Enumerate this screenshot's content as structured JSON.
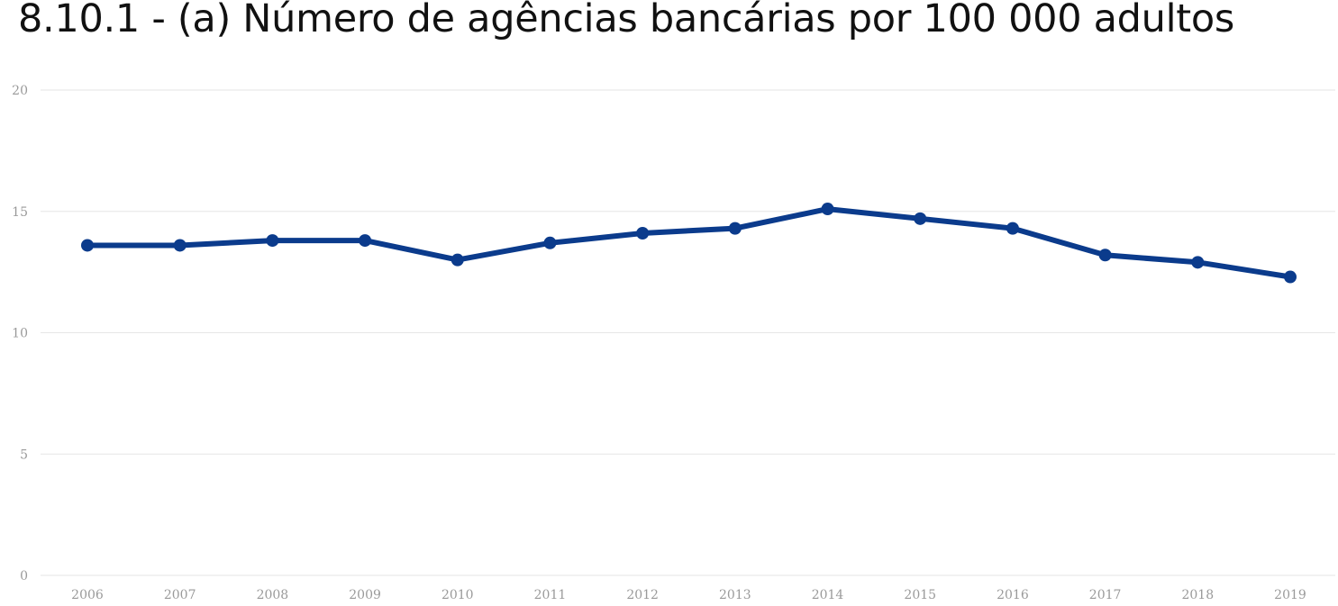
{
  "chart_data": {
    "type": "line",
    "title": "8.10.1 - (a) Número de agências bancárias por 100 000 adultos",
    "xlabel": "",
    "ylabel": "",
    "x": [
      "2006",
      "2007",
      "2008",
      "2009",
      "2010",
      "2011",
      "2012",
      "2013",
      "2014",
      "2015",
      "2016",
      "2017",
      "2018",
      "2019"
    ],
    "series": [
      {
        "values": [
          13.6,
          13.6,
          13.8,
          13.8,
          13.0,
          13.7,
          14.1,
          14.3,
          15.1,
          14.7,
          14.3,
          13.2,
          12.9,
          12.3
        ]
      }
    ],
    "ylim": [
      0,
      20
    ],
    "yticks": [
      "0",
      "5",
      "10",
      "15",
      "20"
    ],
    "grid": "horizontal",
    "legend": "none",
    "line_color": "#0b3b8c",
    "grid_color": "#e6e6e6",
    "tick_color": "#9a9a9a"
  }
}
